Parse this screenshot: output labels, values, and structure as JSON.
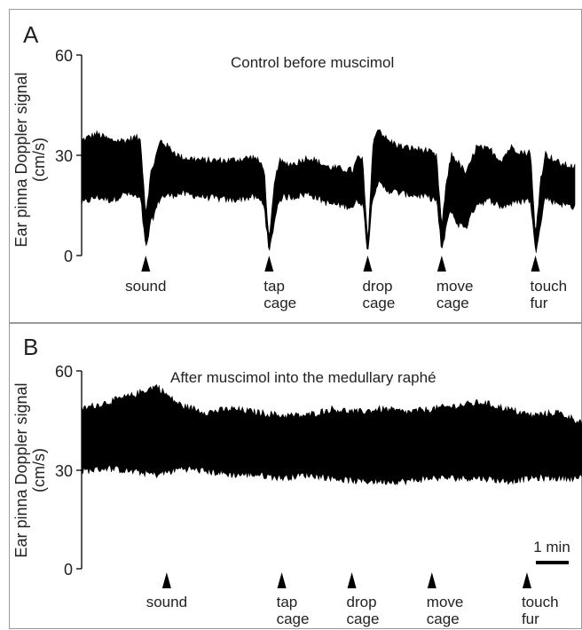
{
  "chart_data": [
    {
      "type": "line",
      "panel_label": "A",
      "title": "Control before muscimol",
      "ylabel_line1": "Ear pinna Doppler signal",
      "ylabel_line2": "(cm/s)",
      "ylim": [
        0,
        60
      ],
      "yticks": [
        "0",
        "30",
        "60"
      ],
      "xlim": [
        0,
        100
      ],
      "trace_envelope": {
        "x": [
          0,
          3,
          6,
          9,
          11,
          12,
          13,
          14,
          16,
          20,
          25,
          30,
          35,
          37,
          38,
          39,
          40,
          41,
          43,
          46,
          50,
          55,
          56,
          57,
          58,
          59,
          60,
          62,
          65,
          70,
          72,
          73,
          74,
          75,
          76,
          78,
          80,
          83,
          85,
          87,
          90,
          91,
          92,
          93,
          94,
          95,
          97,
          100
        ],
        "upper": [
          34,
          36,
          34,
          34,
          35,
          34,
          12,
          24,
          34,
          29,
          28,
          28,
          29,
          26,
          3,
          20,
          28,
          27,
          27,
          29,
          26,
          25,
          29,
          28,
          3,
          32,
          38,
          34,
          32,
          31,
          29,
          8,
          22,
          30,
          28,
          24,
          32,
          31,
          28,
          32,
          30,
          31,
          5,
          22,
          30,
          29,
          27,
          26
        ],
        "lower": [
          16,
          18,
          17,
          19,
          18,
          17,
          2,
          10,
          18,
          19,
          18,
          17,
          18,
          16,
          0.5,
          10,
          17,
          18,
          18,
          19,
          16,
          15,
          17,
          16,
          1,
          18,
          22,
          20,
          19,
          18,
          17,
          1,
          10,
          14,
          10,
          9,
          16,
          17,
          15,
          16,
          17,
          17,
          1,
          10,
          18,
          17,
          16,
          15
        ]
      },
      "events": [
        {
          "label": "sound",
          "x": 13
        },
        {
          "label": "tap\ncage",
          "x": 38
        },
        {
          "label": "drop\ncage",
          "x": 58
        },
        {
          "label": "move\ncage",
          "x": 73
        },
        {
          "label": "touch\nfur",
          "x": 92
        }
      ]
    },
    {
      "type": "line",
      "panel_label": "B",
      "title": "After muscimol into the medullary raphé",
      "ylabel_line1": "Ear pinna Doppler signal",
      "ylabel_line2": "(cm/s)",
      "ylim": [
        0,
        60
      ],
      "yticks": [
        "0",
        "30",
        "60"
      ],
      "xlim": [
        0,
        100
      ],
      "trace_envelope": {
        "x": [
          0,
          5,
          10,
          15,
          18,
          20,
          25,
          30,
          35,
          40,
          45,
          50,
          55,
          60,
          65,
          70,
          75,
          80,
          85,
          90,
          95,
          100
        ],
        "upper": [
          48,
          50,
          52,
          55,
          51,
          49,
          47,
          48,
          47,
          46,
          46,
          48,
          47,
          48,
          47,
          48,
          49,
          50,
          48,
          46,
          47,
          44
        ],
        "lower": [
          30,
          31,
          30,
          29,
          30,
          31,
          30,
          29,
          29,
          28,
          29,
          28,
          27,
          27,
          27,
          28,
          28,
          28,
          27,
          28,
          28,
          28
        ]
      },
      "events": [
        {
          "label": "sound",
          "x": 17
        },
        {
          "label": "tap\ncage",
          "x": 40
        },
        {
          "label": "drop\ncage",
          "x": 54
        },
        {
          "label": "move\ncage",
          "x": 70
        },
        {
          "label": "touch\nfur",
          "x": 89
        }
      ],
      "scalebar_label": "1 min"
    }
  ]
}
